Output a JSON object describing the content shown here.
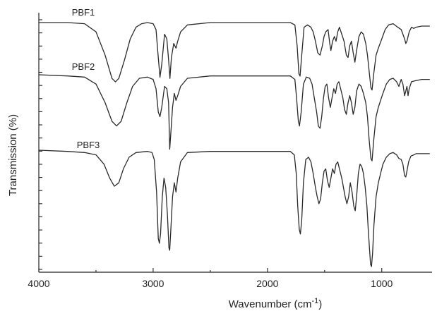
{
  "chart_data": {
    "type": "line",
    "xlabel": "Wavenumber (cm",
    "xlabel_sup": "-1",
    "xlabel_close": ")",
    "ylabel": "Transmission (%)",
    "xlim": [
      4000,
      560
    ],
    "x_reversed": true,
    "x_ticks": [
      4000,
      3000,
      2000,
      1000
    ],
    "x_tick_labels": [
      "4000",
      "3000",
      "2000",
      "1000"
    ],
    "y_tick_count": 20,
    "grid": false,
    "series": [
      {
        "name": "PBF1",
        "offset": 0,
        "points": [
          [
            4000,
            100
          ],
          [
            3750,
            100
          ],
          [
            3600,
            99.5
          ],
          [
            3500,
            96
          ],
          [
            3420,
            86
          ],
          [
            3360,
            76
          ],
          [
            3330,
            74.5
          ],
          [
            3300,
            76
          ],
          [
            3250,
            84
          ],
          [
            3200,
            93
          ],
          [
            3150,
            98
          ],
          [
            3100,
            99.5
          ],
          [
            3050,
            100
          ],
          [
            3000,
            99.5
          ],
          [
            2975,
            97
          ],
          [
            2955,
            85
          ],
          [
            2940,
            76.5
          ],
          [
            2925,
            82
          ],
          [
            2900,
            95
          ],
          [
            2880,
            93
          ],
          [
            2865,
            84
          ],
          [
            2853,
            76
          ],
          [
            2840,
            85
          ],
          [
            2820,
            91
          ],
          [
            2800,
            89
          ],
          [
            2785,
            92
          ],
          [
            2760,
            96
          ],
          [
            2700,
            99
          ],
          [
            2500,
            100
          ],
          [
            2000,
            100
          ],
          [
            1800,
            100
          ],
          [
            1760,
            99
          ],
          [
            1740,
            90
          ],
          [
            1725,
            78
          ],
          [
            1715,
            77
          ],
          [
            1700,
            86
          ],
          [
            1680,
            98
          ],
          [
            1650,
            99
          ],
          [
            1620,
            98
          ],
          [
            1600,
            96
          ],
          [
            1580,
            92
          ],
          [
            1560,
            87
          ],
          [
            1540,
            86
          ],
          [
            1520,
            90
          ],
          [
            1505,
            94
          ],
          [
            1490,
            96
          ],
          [
            1470,
            97
          ],
          [
            1455,
            91
          ],
          [
            1445,
            88
          ],
          [
            1430,
            92
          ],
          [
            1415,
            94
          ],
          [
            1400,
            92
          ],
          [
            1385,
            96
          ],
          [
            1370,
            98
          ],
          [
            1350,
            95
          ],
          [
            1330,
            92
          ],
          [
            1310,
            86
          ],
          [
            1295,
            85
          ],
          [
            1280,
            90
          ],
          [
            1265,
            92
          ],
          [
            1250,
            87
          ],
          [
            1235,
            83
          ],
          [
            1220,
            88
          ],
          [
            1200,
            94
          ],
          [
            1180,
            96
          ],
          [
            1160,
            95
          ],
          [
            1140,
            91
          ],
          [
            1125,
            86
          ],
          [
            1110,
            79
          ],
          [
            1095,
            72
          ],
          [
            1085,
            71
          ],
          [
            1070,
            78
          ],
          [
            1050,
            86
          ],
          [
            1030,
            89
          ],
          [
            1000,
            93
          ],
          [
            970,
            97
          ],
          [
            940,
            99
          ],
          [
            900,
            99.5
          ],
          [
            860,
            98
          ],
          [
            830,
            97
          ],
          [
            800,
            93
          ],
          [
            790,
            91
          ],
          [
            780,
            92
          ],
          [
            760,
            96
          ],
          [
            740,
            98
          ],
          [
            720,
            97.5
          ],
          [
            700,
            98
          ],
          [
            650,
            98.5
          ],
          [
            600,
            98.5
          ],
          [
            580,
            98.5
          ]
        ]
      },
      {
        "name": "PBF2",
        "offset": -36,
        "points": [
          [
            4000,
            100
          ],
          [
            3750,
            99.5
          ],
          [
            3600,
            99
          ],
          [
            3500,
            96
          ],
          [
            3420,
            88
          ],
          [
            3360,
            80
          ],
          [
            3320,
            78
          ],
          [
            3280,
            80
          ],
          [
            3230,
            88
          ],
          [
            3180,
            95
          ],
          [
            3120,
            98.5
          ],
          [
            3050,
            99
          ],
          [
            3000,
            98
          ],
          [
            2975,
            94
          ],
          [
            2955,
            84
          ],
          [
            2940,
            82
          ],
          [
            2925,
            86
          ],
          [
            2900,
            95
          ],
          [
            2880,
            94
          ],
          [
            2865,
            88
          ],
          [
            2855,
            68
          ],
          [
            2845,
            75
          ],
          [
            2830,
            86
          ],
          [
            2815,
            92
          ],
          [
            2800,
            89
          ],
          [
            2785,
            91
          ],
          [
            2760,
            95
          ],
          [
            2700,
            98.5
          ],
          [
            2500,
            99.5
          ],
          [
            2000,
            99.5
          ],
          [
            1800,
            99.5
          ],
          [
            1760,
            98
          ],
          [
            1745,
            90
          ],
          [
            1730,
            80
          ],
          [
            1720,
            78
          ],
          [
            1705,
            84
          ],
          [
            1685,
            96
          ],
          [
            1660,
            99
          ],
          [
            1630,
            98.5
          ],
          [
            1610,
            96
          ],
          [
            1590,
            90
          ],
          [
            1570,
            84
          ],
          [
            1555,
            78
          ],
          [
            1540,
            77
          ],
          [
            1525,
            82
          ],
          [
            1510,
            90
          ],
          [
            1495,
            95
          ],
          [
            1480,
            96
          ],
          [
            1465,
            90
          ],
          [
            1450,
            86
          ],
          [
            1435,
            90
          ],
          [
            1420,
            94
          ],
          [
            1405,
            92
          ],
          [
            1390,
            96
          ],
          [
            1375,
            97
          ],
          [
            1360,
            94
          ],
          [
            1340,
            90
          ],
          [
            1325,
            85
          ],
          [
            1310,
            83
          ],
          [
            1295,
            88
          ],
          [
            1280,
            91
          ],
          [
            1265,
            88
          ],
          [
            1250,
            83
          ],
          [
            1235,
            86
          ],
          [
            1220,
            93
          ],
          [
            1200,
            96
          ],
          [
            1180,
            95
          ],
          [
            1160,
            92
          ],
          [
            1140,
            88
          ],
          [
            1125,
            82
          ],
          [
            1110,
            72
          ],
          [
            1095,
            64
          ],
          [
            1085,
            63
          ],
          [
            1070,
            72
          ],
          [
            1050,
            82
          ],
          [
            1030,
            86
          ],
          [
            1010,
            89
          ],
          [
            990,
            92
          ],
          [
            960,
            96
          ],
          [
            930,
            98
          ],
          [
            900,
            98.5
          ],
          [
            870,
            97
          ],
          [
            850,
            95
          ],
          [
            830,
            98
          ],
          [
            815,
            96
          ],
          [
            800,
            91
          ],
          [
            790,
            93
          ],
          [
            780,
            95
          ],
          [
            770,
            91
          ],
          [
            760,
            94
          ],
          [
            740,
            97
          ],
          [
            700,
            97.5
          ],
          [
            650,
            98
          ],
          [
            600,
            98
          ],
          [
            580,
            98
          ]
        ]
      },
      {
        "name": "PBF3",
        "offset": -63,
        "points": [
          [
            4000,
            100
          ],
          [
            3750,
            99.5
          ],
          [
            3600,
            99
          ],
          [
            3500,
            98
          ],
          [
            3430,
            94
          ],
          [
            3380,
            88
          ],
          [
            3340,
            84.5
          ],
          [
            3300,
            86
          ],
          [
            3260,
            92
          ],
          [
            3210,
            97
          ],
          [
            3150,
            99
          ],
          [
            3050,
            99.5
          ],
          [
            3010,
            99
          ],
          [
            2990,
            96
          ],
          [
            2970,
            82
          ],
          [
            2955,
            62
          ],
          [
            2945,
            60
          ],
          [
            2935,
            64
          ],
          [
            2920,
            80
          ],
          [
            2905,
            88
          ],
          [
            2890,
            84
          ],
          [
            2875,
            72
          ],
          [
            2862,
            58
          ],
          [
            2855,
            57
          ],
          [
            2845,
            66
          ],
          [
            2830,
            80
          ],
          [
            2815,
            86
          ],
          [
            2800,
            82
          ],
          [
            2785,
            88
          ],
          [
            2760,
            95
          ],
          [
            2700,
            99
          ],
          [
            2500,
            99.5
          ],
          [
            2000,
            99.5
          ],
          [
            1800,
            99.5
          ],
          [
            1765,
            98
          ],
          [
            1748,
            90
          ],
          [
            1735,
            76
          ],
          [
            1722,
            66
          ],
          [
            1712,
            64
          ],
          [
            1700,
            70
          ],
          [
            1685,
            86
          ],
          [
            1665,
            96
          ],
          [
            1640,
            97
          ],
          [
            1620,
            95
          ],
          [
            1600,
            90
          ],
          [
            1580,
            84
          ],
          [
            1565,
            80
          ],
          [
            1550,
            77
          ],
          [
            1535,
            79
          ],
          [
            1520,
            86
          ],
          [
            1505,
            91
          ],
          [
            1490,
            92
          ],
          [
            1475,
            87
          ],
          [
            1460,
            84
          ],
          [
            1445,
            88
          ],
          [
            1430,
            92
          ],
          [
            1415,
            90
          ],
          [
            1400,
            94
          ],
          [
            1385,
            95
          ],
          [
            1370,
            92
          ],
          [
            1350,
            88
          ],
          [
            1335,
            84
          ],
          [
            1320,
            80
          ],
          [
            1305,
            77
          ],
          [
            1290,
            80
          ],
          [
            1275,
            86
          ],
          [
            1260,
            82
          ],
          [
            1245,
            76
          ],
          [
            1232,
            74
          ],
          [
            1220,
            80
          ],
          [
            1205,
            90
          ],
          [
            1190,
            94
          ],
          [
            1175,
            93
          ],
          [
            1160,
            90
          ],
          [
            1145,
            84
          ],
          [
            1130,
            76
          ],
          [
            1118,
            66
          ],
          [
            1108,
            58
          ],
          [
            1098,
            51
          ],
          [
            1090,
            50
          ],
          [
            1080,
            56
          ],
          [
            1068,
            68
          ],
          [
            1050,
            80
          ],
          [
            1030,
            86
          ],
          [
            1010,
            90
          ],
          [
            990,
            94
          ],
          [
            960,
            97
          ],
          [
            930,
            98.5
          ],
          [
            900,
            99
          ],
          [
            870,
            98
          ],
          [
            850,
            96.5
          ],
          [
            830,
            96
          ],
          [
            815,
            94
          ],
          [
            800,
            89
          ],
          [
            790,
            88.5
          ],
          [
            780,
            91
          ],
          [
            765,
            95
          ],
          [
            745,
            97.5
          ],
          [
            720,
            98
          ],
          [
            700,
            98.5
          ],
          [
            650,
            98.5
          ],
          [
            600,
            98.5
          ],
          [
            580,
            98.5
          ]
        ]
      }
    ]
  }
}
